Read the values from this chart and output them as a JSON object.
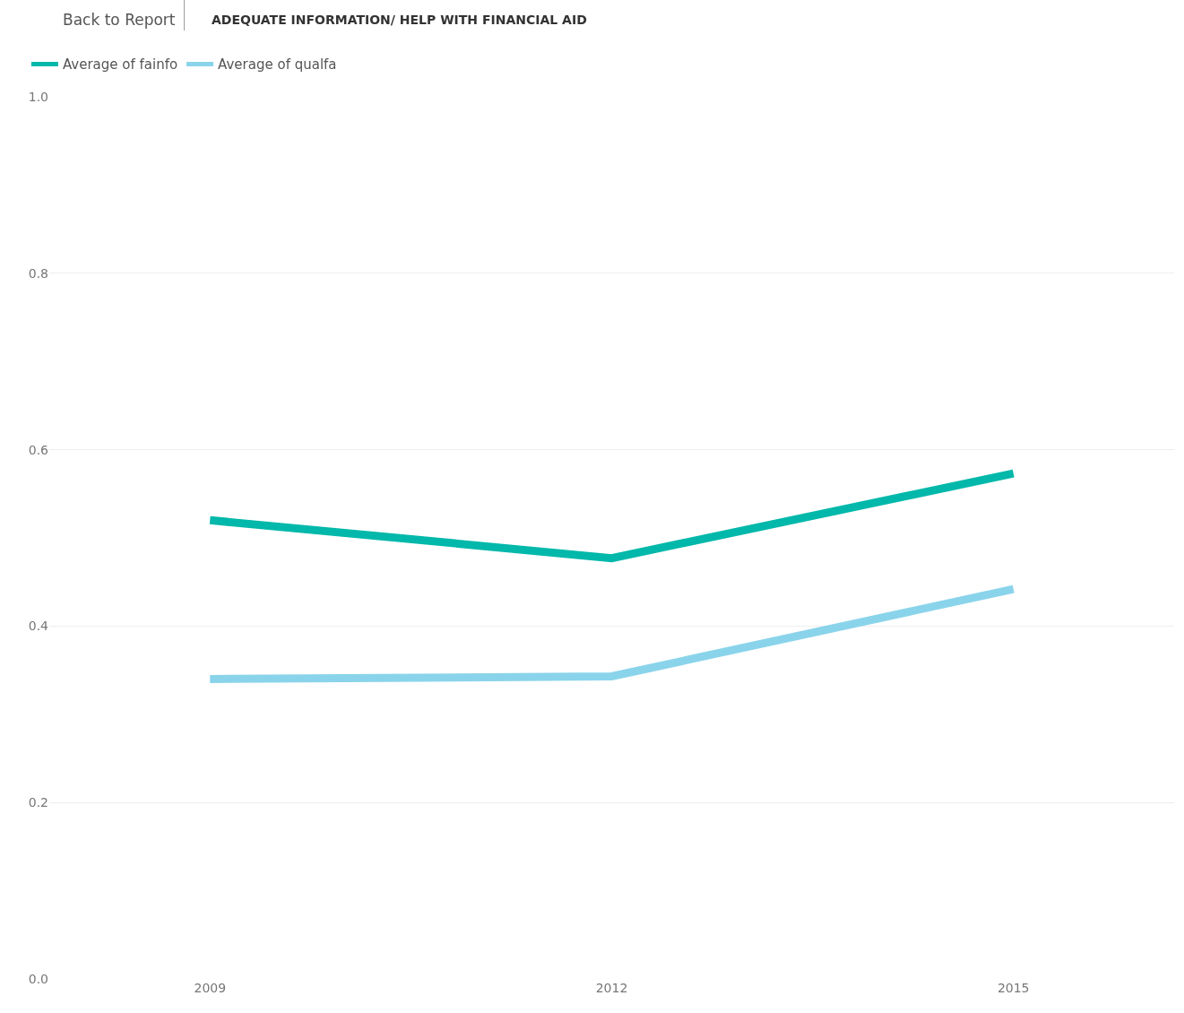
{
  "chart_data": {
    "type": "line",
    "title": "ADEQUATE INFORMATION/ HELP WITH FINANCIAL AID",
    "annotations": [
      "Back to Report"
    ],
    "categories": [
      "2009",
      "2012",
      "2015"
    ],
    "series": [
      {
        "name": "Average of fainfo",
        "color": "#01b8aa",
        "values": [
          0.52,
          0.477,
          0.573
        ]
      },
      {
        "name": "Average of qualfa",
        "color": "#8ad4eb",
        "values": [
          0.34,
          0.343,
          0.442
        ]
      }
    ],
    "ylim": [
      0,
      1.0
    ],
    "yticks": [
      {
        "value": 0,
        "label": "0.0"
      },
      0.2,
      0.4,
      0.6,
      0.8,
      {
        "value": 1.0,
        "label": "1.0"
      }
    ],
    "grid": "y",
    "legend": "top left",
    "marker": "none",
    "line_style": "solid"
  }
}
